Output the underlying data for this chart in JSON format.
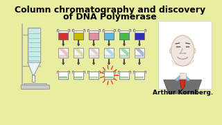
{
  "title_line1": "Column chromatography and discovery",
  "title_line2": "of DNA Polymerase",
  "title_fontsize": 9.0,
  "title_fontweight": "bold",
  "bg_color": "#e8eda0",
  "author_text": "Arthur Kornberg.",
  "author_fontsize": 6.5,
  "beaker_colors_row1": [
    "#d83030",
    "#c8b800",
    "#e090a0",
    "#60b8d8",
    "#48b848",
    "#3030b8"
  ],
  "diag_colors_row2": [
    "#e8b0b8",
    "#c8d880",
    "#e0c0c8",
    "#90d0e8",
    "#80d090",
    "#90a0c0"
  ],
  "beaker_colors_row3": [
    "#80c880",
    "#90c878",
    "#a8d890",
    "#88c880",
    "#98d088",
    "#a8c888"
  ],
  "arrow_color": "#505050",
  "column_fill": "#80d0c8",
  "spark_color": "#e03020",
  "face_color": "#f0e8e0",
  "suit_color": "#707070",
  "collar_color": "#90c0d8",
  "tie_color": "#d03020"
}
